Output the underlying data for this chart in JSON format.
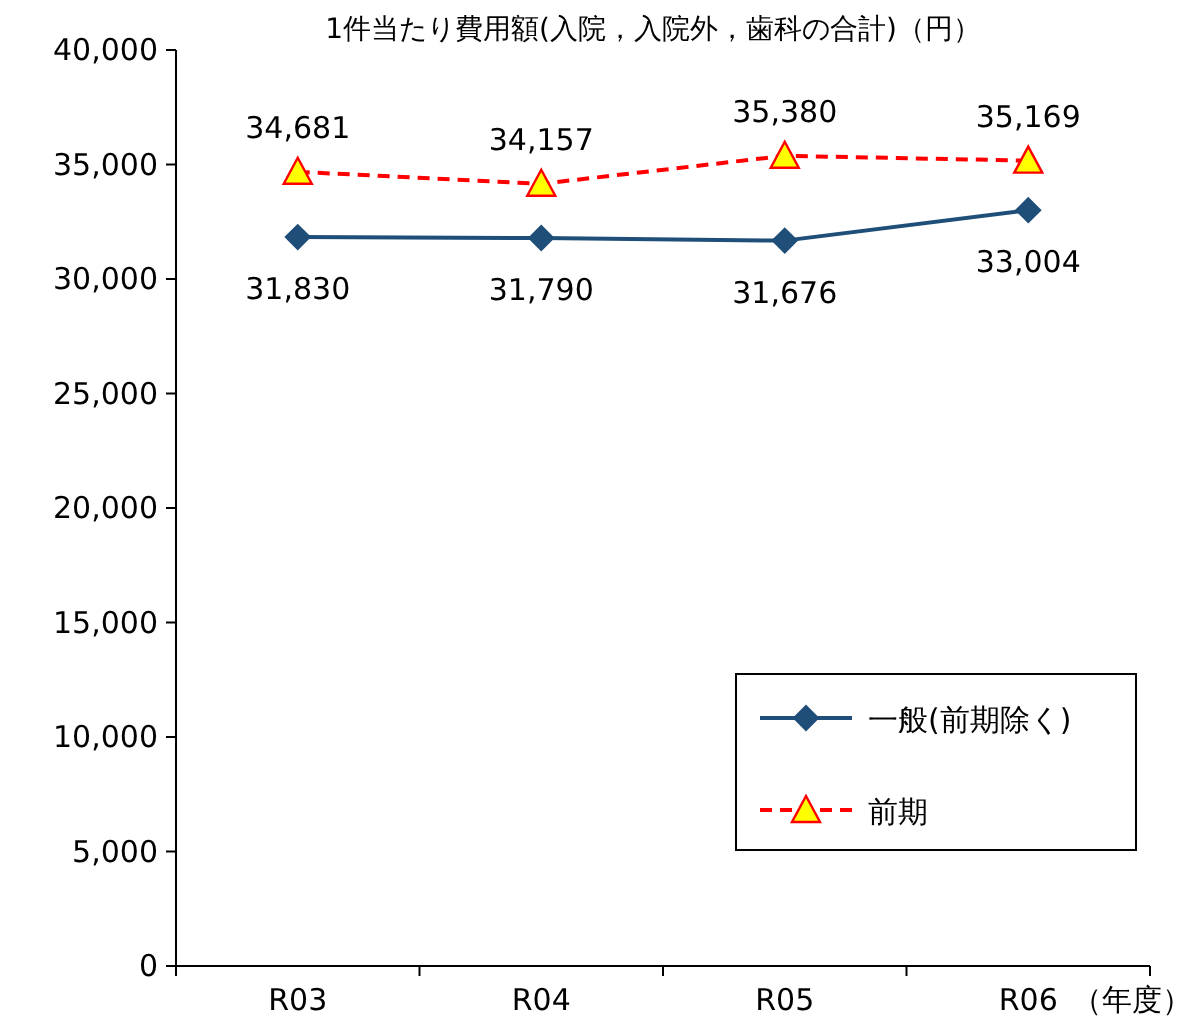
{
  "chart_data": {
    "type": "line",
    "title": "1件当たり費用額(入院，入院外，歯科の合計)（円）",
    "xlabel": "（年度）",
    "categories": [
      "R03",
      "R04",
      "R05",
      "R06"
    ],
    "series": [
      {
        "name": "一般(前期除く)",
        "color": "#1f4e79",
        "values": [
          31830,
          31790,
          31676,
          33004
        ],
        "value_labels": [
          "31,830",
          "31,790",
          "31,676",
          "33,004"
        ],
        "marker": "diamond",
        "line_style": "solid"
      },
      {
        "name": "前期",
        "color": "#ff0000",
        "values": [
          34681,
          34157,
          35380,
          35169
        ],
        "value_labels": [
          "34,681",
          "34,157",
          "35,380",
          "35,169"
        ],
        "marker": "triangle",
        "line_style": "dashed"
      }
    ],
    "ylim": [
      0,
      40000
    ],
    "yticks": [
      {
        "value": 0,
        "label": "0"
      },
      {
        "value": 5000,
        "label": "5,000"
      },
      {
        "value": 10000,
        "label": "10,000"
      },
      {
        "value": 15000,
        "label": "15,000"
      },
      {
        "value": 20000,
        "label": "20,000"
      },
      {
        "value": 25000,
        "label": "25,000"
      },
      {
        "value": 30000,
        "label": "30,000"
      },
      {
        "value": 35000,
        "label": "35,000"
      },
      {
        "value": 40000,
        "label": "40,000"
      }
    ],
    "legend": "bottom right",
    "grid": false
  }
}
